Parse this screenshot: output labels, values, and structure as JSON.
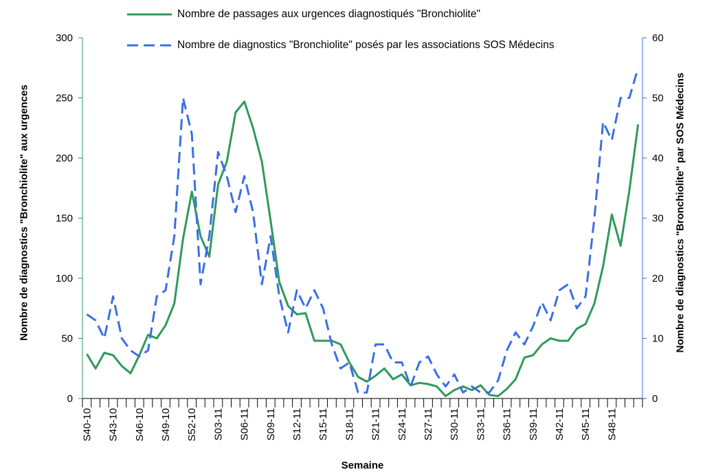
{
  "chart_data": {
    "type": "line",
    "x_label": "Semaine",
    "y_label": "Nombre de diagnostics \"Bronchiolite\" aux urgences",
    "y2_label": "Nombre de diagnostics \"Bronchiolite\" par SOS Médecins",
    "categories": [
      "S40-10",
      null,
      null,
      "S43-10",
      null,
      null,
      "S46-10",
      null,
      null,
      "S49-10",
      null,
      null,
      "S52-10",
      null,
      null,
      "S03-11",
      null,
      null,
      "S06-11",
      null,
      null,
      "S09-11",
      null,
      null,
      "S12-11",
      null,
      null,
      "S15-11",
      null,
      null,
      "S18-11",
      null,
      null,
      "S21-11",
      null,
      null,
      "S24-11",
      null,
      null,
      "S27-11",
      null,
      null,
      "S30-11",
      null,
      null,
      "S33-11",
      null,
      null,
      "S36-11",
      null,
      null,
      "S39-11",
      null,
      null,
      "S42-11",
      null,
      null,
      "S45-11",
      null,
      null,
      "S48-11",
      null,
      null,
      null
    ],
    "series": [
      {
        "name": "Nombre de passages aux urgences diagnostiqués \"Bronchiolite\"",
        "color": "#2e9a5a",
        "dash": false,
        "values": [
          37,
          25,
          38,
          36,
          27,
          21,
          36,
          53,
          50,
          61,
          79,
          133,
          172,
          135,
          118,
          178,
          197,
          238,
          247,
          225,
          197,
          148,
          97,
          77,
          70,
          71,
          48,
          48,
          48,
          45,
          30,
          18,
          14,
          19,
          25,
          16,
          20,
          11,
          13,
          12,
          10,
          2,
          7,
          10,
          7,
          11,
          3,
          2,
          8,
          16,
          34,
          36,
          45,
          50,
          48,
          48,
          58,
          62,
          79,
          110,
          153,
          127,
          173,
          228
        ]
      },
      {
        "name": "Nombre de diagnostics \"Bronchiolite\" posés par les associations SOS Médecins",
        "color": "#3a6ee8",
        "dash": true,
        "axis": "y2",
        "values": [
          14,
          13,
          10,
          17,
          10,
          8,
          7,
          8,
          17,
          18,
          27,
          50,
          44,
          19,
          27,
          41,
          37,
          31,
          37,
          31,
          19,
          27,
          17,
          11,
          18,
          15,
          18,
          15,
          9,
          5,
          6,
          1,
          1,
          9,
          9,
          6,
          6,
          2,
          6,
          7,
          4,
          2,
          4,
          1,
          2,
          1,
          1,
          3,
          8,
          11,
          9,
          12,
          16,
          13,
          18,
          19,
          15,
          17,
          30,
          46,
          43,
          50,
          50,
          55
        ]
      }
    ],
    "ylim": [
      0,
      300
    ],
    "yticks": [
      0,
      50,
      100,
      150,
      200,
      250,
      300
    ],
    "y2lim": [
      0,
      60
    ],
    "y2ticks": [
      0,
      10,
      20,
      30,
      40,
      50,
      60
    ],
    "legend": "top"
  }
}
